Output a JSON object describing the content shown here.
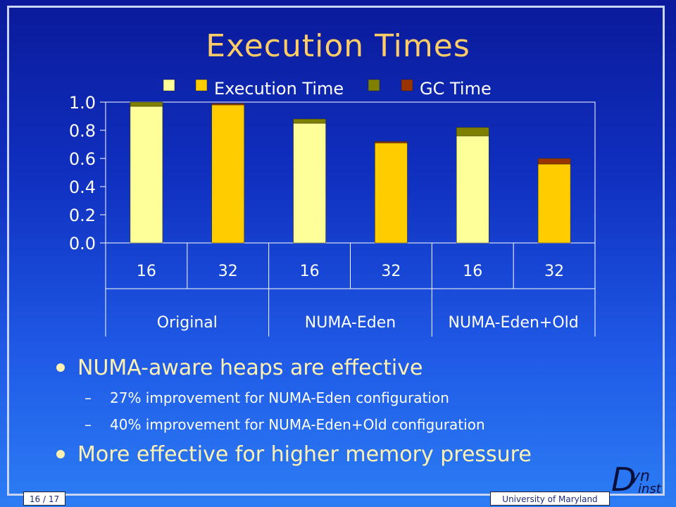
{
  "slide": {
    "title": "Execution Times",
    "page_number": "16 / 17",
    "footer": "University of Maryland",
    "logo": {
      "d": "D",
      "yn": "yn",
      "inst": "inst"
    }
  },
  "bullets": [
    {
      "level": 1,
      "text": "NUMA-aware heaps are effective"
    },
    {
      "level": 2,
      "text": "27% improvement for NUMA-Eden configuration"
    },
    {
      "level": 2,
      "text": "40% improvement for NUMA-Eden+Old configuration"
    },
    {
      "level": 1,
      "text": "More effective for higher memory pressure"
    }
  ],
  "colors": {
    "exec_16": "#ffff99",
    "exec_32": "#ffcc00",
    "gc_16": "#808000",
    "gc_32": "#993300"
  },
  "chart_data": {
    "type": "bar",
    "stacked": true,
    "title": "",
    "xlabel": "",
    "ylabel": "",
    "ylim": [
      0,
      1.0
    ],
    "yticks": [
      "1.0",
      "0.8",
      "0.6",
      "0.4",
      "0.2",
      "0.0"
    ],
    "groups": [
      "Original",
      "NUMA-Eden",
      "NUMA-Eden+Old"
    ],
    "categories": [
      "16",
      "32",
      "16",
      "32",
      "16",
      "32"
    ],
    "legend": [
      "Execution Time",
      "GC Time"
    ],
    "legend_position": "top",
    "series": [
      {
        "name": "Execution Time",
        "values": [
          0.97,
          0.98,
          0.85,
          0.71,
          0.76,
          0.56
        ]
      },
      {
        "name": "GC Time",
        "values": [
          0.03,
          0.01,
          0.03,
          0.01,
          0.06,
          0.04
        ]
      }
    ]
  }
}
